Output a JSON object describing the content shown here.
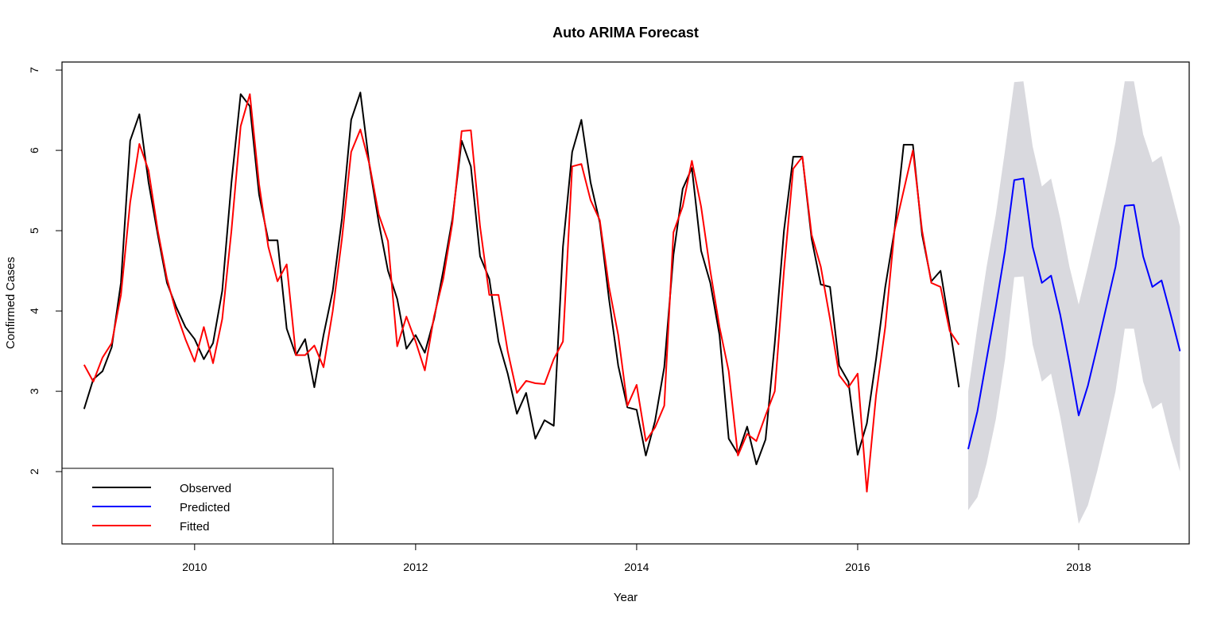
{
  "chart_data": {
    "type": "line",
    "title": "Auto ARIMA Forecast",
    "xlabel": "Year",
    "ylabel": "Confirmed Cases",
    "xlim": [
      2008.8,
      2019.0
    ],
    "ylim": [
      1.1,
      7.1
    ],
    "x_ticks": [
      2010,
      2012,
      2014,
      2016,
      2018
    ],
    "y_ticks": [
      2,
      3,
      4,
      5,
      6,
      7
    ],
    "legend": {
      "position": "bottom-left",
      "entries": [
        {
          "label": "Observed",
          "color": "#000000"
        },
        {
          "label": "Predicted",
          "color": "#0000ff"
        },
        {
          "label": "Fitted",
          "color": "#ff0000"
        }
      ]
    },
    "colors": {
      "observed": "#000000",
      "predicted": "#0000ff",
      "fitted": "#ff0000",
      "interval": "#d9d9de"
    },
    "observed": {
      "start": 2009.0,
      "step": 0.08333,
      "values": [
        2.78,
        3.15,
        3.25,
        3.55,
        4.35,
        6.12,
        6.45,
        5.6,
        4.95,
        4.35,
        4.05,
        3.8,
        3.65,
        3.4,
        3.6,
        4.25,
        5.6,
        6.7,
        6.55,
        5.45,
        4.88,
        4.88,
        3.78,
        3.45,
        3.65,
        3.05,
        3.7,
        4.25,
        5.15,
        6.38,
        6.72,
        5.8,
        5.1,
        4.5,
        4.15,
        3.53,
        3.7,
        3.48,
        3.9,
        4.5,
        5.15,
        6.12,
        5.8,
        4.68,
        4.4,
        3.62,
        3.22,
        2.72,
        2.98,
        2.41,
        2.64,
        2.57,
        4.8,
        5.98,
        6.38,
        5.6,
        5.1,
        4.15,
        3.32,
        2.8,
        2.77,
        2.2,
        2.63,
        3.3,
        4.7,
        5.52,
        5.78,
        4.75,
        4.35,
        3.7,
        2.41,
        2.22,
        2.56,
        2.09,
        2.4,
        3.6,
        5.0,
        5.92,
        5.92,
        4.9,
        4.33,
        4.3,
        3.32,
        3.12,
        2.21,
        2.6,
        3.4,
        4.3,
        5.0,
        6.07,
        6.07,
        4.95,
        4.37,
        4.5,
        3.8,
        3.05
      ]
    },
    "fitted": {
      "start": 2009.0,
      "step": 0.08333,
      "values": [
        3.33,
        3.12,
        3.42,
        3.6,
        4.2,
        5.35,
        6.08,
        5.75,
        5.0,
        4.4,
        3.98,
        3.65,
        3.37,
        3.8,
        3.35,
        3.9,
        5.0,
        6.3,
        6.7,
        5.58,
        4.8,
        4.37,
        4.58,
        3.45,
        3.45,
        3.57,
        3.3,
        4.0,
        4.9,
        5.98,
        6.26,
        5.82,
        5.2,
        4.87,
        3.56,
        3.93,
        3.62,
        3.26,
        3.93,
        4.4,
        5.1,
        6.24,
        6.25,
        5.05,
        4.2,
        4.2,
        3.5,
        2.98,
        3.13,
        3.1,
        3.09,
        3.4,
        3.62,
        5.8,
        5.83,
        5.38,
        5.13,
        4.3,
        3.7,
        2.82,
        3.08,
        2.38,
        2.55,
        2.82,
        4.98,
        5.3,
        5.87,
        5.3,
        4.5,
        3.8,
        3.25,
        2.2,
        2.47,
        2.38,
        2.7,
        3.0,
        4.5,
        5.77,
        5.92,
        4.95,
        4.55,
        3.9,
        3.2,
        3.05,
        3.22,
        1.75,
        2.95,
        3.8,
        5.0,
        5.5,
        6.0,
        5.0,
        4.35,
        4.3,
        3.75,
        3.58
      ]
    },
    "predicted": {
      "start": 2017.0,
      "step": 0.08333,
      "values": [
        2.28,
        2.75,
        3.4,
        4.05,
        4.75,
        5.63,
        5.65,
        4.8,
        4.35,
        4.44,
        3.95,
        3.35,
        2.7,
        3.07,
        3.55,
        4.05,
        4.55,
        5.31,
        5.32,
        4.68,
        4.3,
        4.38,
        3.95,
        3.5
      ],
      "lower": [
        1.52,
        1.68,
        2.1,
        2.65,
        3.4,
        4.42,
        4.43,
        3.58,
        3.12,
        3.22,
        2.68,
        2.05,
        1.35,
        1.58,
        2.0,
        2.48,
        3.0,
        3.78,
        3.78,
        3.12,
        2.78,
        2.86,
        2.4,
        2.0
      ],
      "upper": [
        3.0,
        3.8,
        4.55,
        5.2,
        6.0,
        6.85,
        6.86,
        6.05,
        5.55,
        5.65,
        5.15,
        4.55,
        4.08,
        4.55,
        5.05,
        5.55,
        6.1,
        6.86,
        6.86,
        6.2,
        5.85,
        5.93,
        5.5,
        5.05
      ]
    }
  }
}
